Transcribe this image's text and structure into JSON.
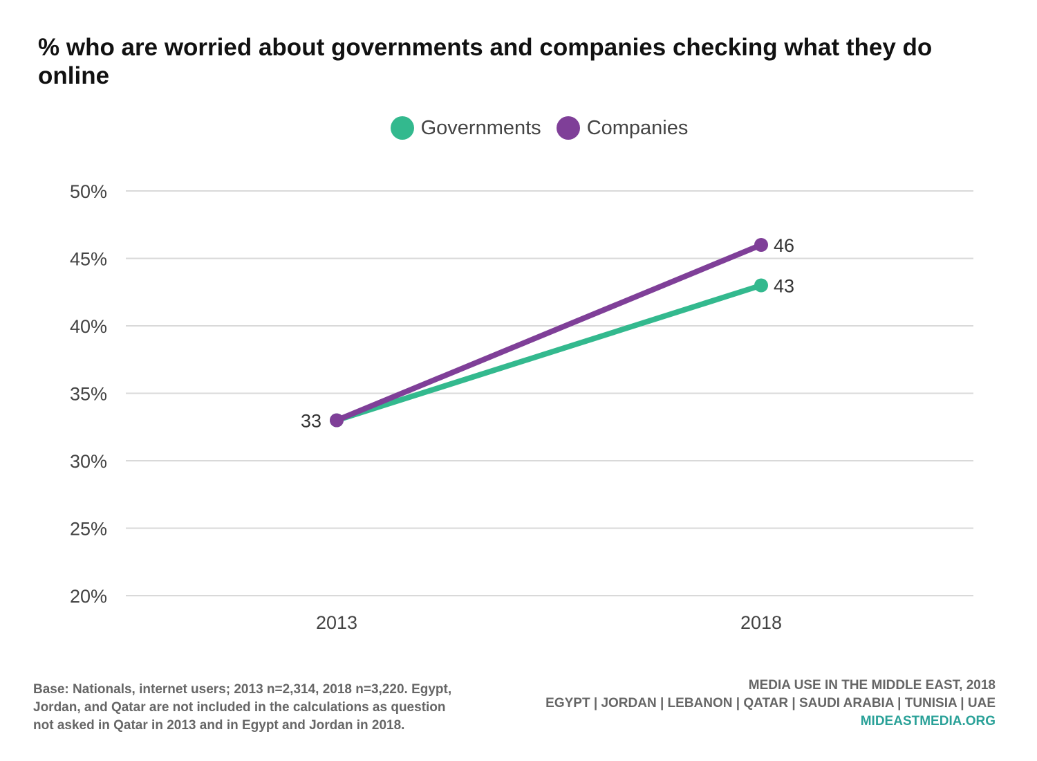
{
  "chart_data": {
    "type": "line",
    "title": "% who are worried about governments and companies checking what they do online",
    "x": [
      "2013",
      "2018"
    ],
    "series": [
      {
        "name": "Governments",
        "color": "#33b98e",
        "values": [
          33,
          43
        ]
      },
      {
        "name": "Companies",
        "color": "#7f3f98",
        "values": [
          33,
          46
        ]
      }
    ],
    "ylim": [
      20,
      50
    ],
    "yticks": [
      "20%",
      "25%",
      "30%",
      "35%",
      "40%",
      "45%",
      "50%"
    ],
    "ytick_values": [
      20,
      25,
      30,
      35,
      40,
      45,
      50
    ],
    "data_labels": [
      {
        "series": "Companies",
        "x": "2013",
        "text": "33"
      },
      {
        "series": "Companies",
        "x": "2018",
        "text": "46"
      },
      {
        "series": "Governments",
        "x": "2018",
        "text": "43"
      }
    ],
    "grid": "horizontal",
    "legend_position": "top-center"
  },
  "footnote": "Base: Nationals, internet users; 2013 n=2,314, 2018 n=3,220. Egypt, Jordan, and Qatar are not included in the calculations as question not asked in Qatar in 2013 and in Egypt and Jordan in 2018.",
  "source": {
    "line1": "MEDIA USE IN THE MIDDLE EAST, 2018",
    "line2": "EGYPT | JORDAN | LEBANON | QATAR | SAUDI ARABIA | TUNISIA | UAE",
    "site": "MIDEASTMEDIA.ORG"
  }
}
